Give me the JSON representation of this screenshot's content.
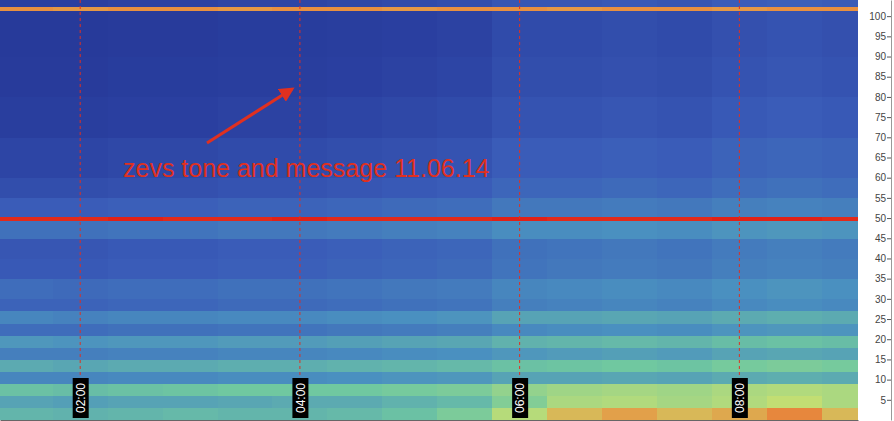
{
  "chart_data": {
    "type": "spectrogram",
    "annotations": [
      "zevs tone and message 11.06.14"
    ],
    "xlim": [
      1.27,
      9.08
    ],
    "xticks": [
      {
        "value": 2,
        "label": "02:00"
      },
      {
        "value": 4,
        "label": "04:00"
      },
      {
        "value": 6,
        "label": "06:00"
      },
      {
        "value": 8,
        "label": "08:00"
      }
    ],
    "ylim": [
      0,
      104
    ],
    "yticks": [
      5,
      10,
      15,
      20,
      25,
      30,
      35,
      40,
      45,
      50,
      55,
      60,
      65,
      70,
      75,
      80,
      85,
      90,
      95,
      100
    ],
    "grid": "x",
    "x_bins": [
      1.25,
      1.75,
      2.25,
      2.75,
      3.25,
      3.75,
      4.25,
      4.75,
      5.25,
      5.75,
      6.25,
      6.75,
      7.25,
      7.75,
      8.25,
      8.75,
      9.25
    ],
    "y_bins": [
      0,
      3,
      6,
      9,
      12,
      15,
      18,
      21,
      24,
      27,
      30,
      35,
      40,
      45,
      49.5,
      50.5,
      55,
      60,
      70,
      80,
      90,
      101.5,
      102.5,
      104
    ],
    "zlim": [
      0,
      1
    ],
    "cells": [
      [
        0.55,
        0.54,
        0.55,
        0.56,
        0.55,
        0.55,
        0.56,
        0.58,
        0.62,
        0.72,
        0.8,
        0.83,
        0.8,
        0.82,
        0.86,
        0.8
      ],
      [
        0.5,
        0.49,
        0.5,
        0.5,
        0.51,
        0.52,
        0.52,
        0.54,
        0.56,
        0.63,
        0.7,
        0.71,
        0.69,
        0.71,
        0.74,
        0.7
      ],
      [
        0.58,
        0.57,
        0.58,
        0.59,
        0.6,
        0.6,
        0.6,
        0.61,
        0.62,
        0.66,
        0.68,
        0.69,
        0.68,
        0.7,
        0.71,
        0.7
      ],
      [
        0.42,
        0.42,
        0.43,
        0.43,
        0.44,
        0.44,
        0.45,
        0.46,
        0.47,
        0.5,
        0.5,
        0.51,
        0.5,
        0.52,
        0.53,
        0.52
      ],
      [
        0.52,
        0.51,
        0.52,
        0.52,
        0.53,
        0.53,
        0.54,
        0.55,
        0.56,
        0.58,
        0.59,
        0.6,
        0.59,
        0.61,
        0.62,
        0.61
      ],
      [
        0.4,
        0.4,
        0.41,
        0.41,
        0.42,
        0.42,
        0.43,
        0.44,
        0.45,
        0.47,
        0.48,
        0.49,
        0.48,
        0.5,
        0.51,
        0.5
      ],
      [
        0.47,
        0.46,
        0.47,
        0.47,
        0.48,
        0.48,
        0.49,
        0.5,
        0.51,
        0.54,
        0.55,
        0.56,
        0.55,
        0.57,
        0.58,
        0.57
      ],
      [
        0.35,
        0.35,
        0.36,
        0.36,
        0.37,
        0.37,
        0.38,
        0.39,
        0.4,
        0.43,
        0.44,
        0.45,
        0.44,
        0.46,
        0.47,
        0.46
      ],
      [
        0.42,
        0.41,
        0.42,
        0.42,
        0.43,
        0.43,
        0.44,
        0.45,
        0.46,
        0.5,
        0.5,
        0.51,
        0.5,
        0.52,
        0.53,
        0.52
      ],
      [
        0.32,
        0.32,
        0.33,
        0.33,
        0.34,
        0.34,
        0.35,
        0.36,
        0.37,
        0.4,
        0.41,
        0.42,
        0.41,
        0.43,
        0.44,
        0.43
      ],
      [
        0.35,
        0.34,
        0.35,
        0.35,
        0.36,
        0.36,
        0.37,
        0.38,
        0.39,
        0.42,
        0.43,
        0.44,
        0.43,
        0.45,
        0.46,
        0.45
      ],
      [
        0.29,
        0.29,
        0.3,
        0.3,
        0.31,
        0.31,
        0.32,
        0.33,
        0.34,
        0.37,
        0.38,
        0.39,
        0.38,
        0.4,
        0.41,
        0.4
      ],
      [
        0.28,
        0.28,
        0.29,
        0.29,
        0.3,
        0.3,
        0.31,
        0.32,
        0.33,
        0.36,
        0.37,
        0.38,
        0.37,
        0.39,
        0.4,
        0.39
      ],
      [
        0.36,
        0.36,
        0.37,
        0.37,
        0.38,
        0.38,
        0.39,
        0.4,
        0.41,
        0.44,
        0.44,
        0.45,
        0.44,
        0.46,
        0.47,
        0.46
      ],
      [
        0.97,
        0.97,
        0.98,
        0.97,
        0.97,
        0.98,
        0.97,
        0.97,
        0.97,
        0.98,
        0.97,
        0.97,
        0.97,
        0.98,
        0.98,
        0.97
      ],
      [
        0.3,
        0.3,
        0.31,
        0.31,
        0.32,
        0.32,
        0.33,
        0.34,
        0.35,
        0.38,
        0.38,
        0.39,
        0.38,
        0.4,
        0.41,
        0.4
      ],
      [
        0.25,
        0.25,
        0.26,
        0.26,
        0.27,
        0.27,
        0.28,
        0.29,
        0.3,
        0.33,
        0.33,
        0.34,
        0.33,
        0.35,
        0.36,
        0.35
      ],
      [
        0.22,
        0.22,
        0.23,
        0.23,
        0.24,
        0.24,
        0.25,
        0.26,
        0.27,
        0.3,
        0.3,
        0.31,
        0.3,
        0.32,
        0.33,
        0.32
      ],
      [
        0.19,
        0.19,
        0.2,
        0.2,
        0.21,
        0.21,
        0.22,
        0.23,
        0.24,
        0.27,
        0.27,
        0.28,
        0.27,
        0.29,
        0.3,
        0.29
      ],
      [
        0.17,
        0.17,
        0.18,
        0.18,
        0.19,
        0.19,
        0.2,
        0.21,
        0.22,
        0.25,
        0.25,
        0.26,
        0.25,
        0.27,
        0.28,
        0.27
      ],
      [
        0.16,
        0.16,
        0.17,
        0.17,
        0.18,
        0.18,
        0.19,
        0.2,
        0.21,
        0.24,
        0.24,
        0.25,
        0.24,
        0.26,
        0.27,
        0.26
      ],
      [
        0.85,
        0.84,
        0.85,
        0.85,
        0.84,
        0.85,
        0.85,
        0.84,
        0.85,
        0.85,
        0.84,
        0.85,
        0.85,
        0.84,
        0.85,
        0.85
      ],
      [
        0.2,
        0.2,
        0.21,
        0.21,
        0.22,
        0.22,
        0.23,
        0.24,
        0.25,
        0.28,
        0.28,
        0.29,
        0.28,
        0.3,
        0.31,
        0.3
      ]
    ]
  }
}
